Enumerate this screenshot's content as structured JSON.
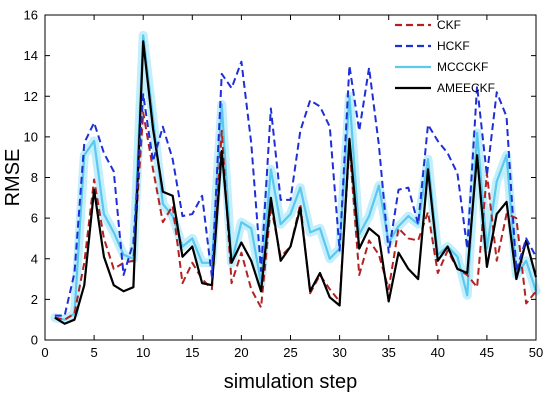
{
  "chart_data": {
    "type": "line",
    "xlabel": "simulation step",
    "ylabel": "RMSE",
    "xlim": [
      0,
      50
    ],
    "ylim": [
      0,
      16
    ],
    "xticks": [
      0,
      5,
      10,
      15,
      20,
      25,
      30,
      35,
      40,
      45,
      50
    ],
    "yticks": [
      0,
      2,
      4,
      6,
      8,
      10,
      12,
      14,
      16
    ],
    "legend_position": "top-right",
    "x": [
      1,
      2,
      3,
      4,
      5,
      6,
      7,
      8,
      9,
      10,
      11,
      12,
      13,
      14,
      15,
      16,
      17,
      18,
      19,
      20,
      21,
      22,
      23,
      24,
      25,
      26,
      27,
      28,
      29,
      30,
      31,
      32,
      33,
      34,
      35,
      36,
      37,
      38,
      39,
      40,
      41,
      42,
      43,
      44,
      45,
      46,
      47,
      48,
      49,
      50
    ],
    "series": [
      {
        "name": "CKF",
        "color": "#b22222",
        "dash": "dashed",
        "values": [
          1.1,
          1.0,
          1.3,
          3.8,
          7.9,
          5.0,
          3.5,
          3.8,
          3.9,
          11.2,
          8.4,
          5.8,
          6.6,
          2.8,
          3.8,
          3.0,
          2.5,
          10.3,
          2.8,
          4.3,
          2.5,
          1.6,
          6.6,
          4.1,
          4.6,
          6.7,
          2.3,
          3.2,
          2.5,
          1.9,
          9.6,
          3.2,
          4.9,
          4.2,
          2.5,
          5.5,
          5.0,
          4.9,
          6.3,
          3.3,
          4.4,
          3.5,
          3.2,
          2.6,
          8.2,
          3.9,
          6.2,
          6.0,
          1.8,
          2.4
        ]
      },
      {
        "name": "HCKF",
        "color": "#1f2fd6",
        "dash": "dashed",
        "values": [
          1.2,
          1.2,
          3.3,
          9.7,
          10.7,
          9.2,
          8.3,
          3.2,
          4.8,
          12.1,
          8.8,
          10.5,
          8.9,
          6.1,
          6.2,
          7.1,
          3.1,
          13.1,
          12.4,
          13.7,
          9.7,
          3.4,
          11.4,
          6.9,
          6.9,
          10.3,
          11.8,
          11.5,
          10.5,
          4.4,
          13.5,
          10.3,
          13.4,
          9.6,
          4.3,
          7.4,
          7.5,
          5.7,
          10.6,
          9.8,
          9.2,
          8.2,
          4.5,
          12.5,
          8.1,
          12.2,
          11.0,
          3.4,
          5.0,
          4.1
        ]
      },
      {
        "name": "MCCCKF",
        "color": "#5bc8ef",
        "dash": "solid",
        "values": [
          1.1,
          1.0,
          1.3,
          9.1,
          9.8,
          6.2,
          5.3,
          4.2,
          4.0,
          15.0,
          10.9,
          6.7,
          6.1,
          4.6,
          5.0,
          3.8,
          3.8,
          11.6,
          3.8,
          5.8,
          5.5,
          2.8,
          8.4,
          5.7,
          6.2,
          7.5,
          5.3,
          5.5,
          4.0,
          4.5,
          12.0,
          5.2,
          6.1,
          7.6,
          4.8,
          5.6,
          6.1,
          5.7,
          8.9,
          4.2,
          4.6,
          4.1,
          2.2,
          10.2,
          4.5,
          7.8,
          9.1,
          3.2,
          3.9,
          2.4
        ]
      },
      {
        "name": "AMEECKF",
        "color": "#000000",
        "dash": "solid",
        "values": [
          1.1,
          0.8,
          1.0,
          2.7,
          7.4,
          4.1,
          2.7,
          2.4,
          2.6,
          14.7,
          10.4,
          7.3,
          7.1,
          4.1,
          4.6,
          2.8,
          2.7,
          9.3,
          3.8,
          4.8,
          3.9,
          2.4,
          7.0,
          3.9,
          4.6,
          6.5,
          2.4,
          3.3,
          2.1,
          1.7,
          9.9,
          4.5,
          5.5,
          5.1,
          1.9,
          4.3,
          3.5,
          3.0,
          8.4,
          3.9,
          4.6,
          3.5,
          3.3,
          9.1,
          3.6,
          6.2,
          6.8,
          3.0,
          4.9,
          3.1
        ]
      }
    ]
  }
}
